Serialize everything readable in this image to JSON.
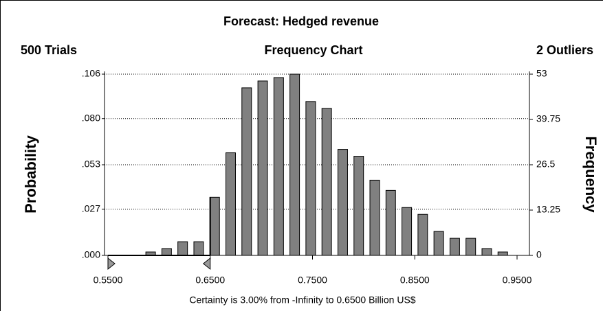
{
  "chart_data": {
    "type": "histogram",
    "title": "Forecast: Hedged revenue",
    "subtitle": "Frequency Chart",
    "trials": "500 Trials",
    "outliers": "2 Outliers",
    "y_label": "Probability",
    "y2_label": "Frequency",
    "footer": "Certainty is 3.00% from -Infinity to 0.6500 Billion US$",
    "bins": [
      0.5839,
      0.5996,
      0.6152,
      0.6309,
      0.6465,
      0.6622,
      0.6778,
      0.6935,
      0.7091,
      0.7248,
      0.7404,
      0.7561,
      0.7717,
      0.7874,
      0.803,
      0.8187,
      0.8343,
      0.85,
      0.8656,
      0.8813,
      0.8969,
      0.9126,
      0.9282,
      0.9439
    ],
    "series": [
      {
        "name": "Frequency",
        "color": "#808080",
        "axis": "y2",
        "values": [
          1,
          2,
          4,
          4,
          17,
          30,
          49,
          51,
          52,
          53,
          45,
          43,
          31,
          29,
          22,
          19,
          14,
          12,
          7,
          5,
          5,
          2,
          1
        ]
      }
    ],
    "certainty_range": [
      0.55,
      0.65
    ],
    "xlim": [
      0.55,
      0.95
    ],
    "xticks": [
      {
        "value": 0.55,
        "label": "0.5500"
      },
      {
        "value": 0.65,
        "label": "0.6500"
      },
      {
        "value": 0.75,
        "label": "0.7500"
      },
      {
        "value": 0.85,
        "label": "0.8500"
      },
      {
        "value": 0.95,
        "label": "0.9500"
      }
    ],
    "ylim": [
      0,
      0.106
    ],
    "yticks": [
      {
        "value": 0,
        "label": ".000"
      },
      {
        "value": 0.027,
        "label": ".027"
      },
      {
        "value": 0.053,
        "label": ".053"
      },
      {
        "value": 0.08,
        "label": ".080"
      },
      {
        "value": 0.106,
        "label": ".106"
      }
    ],
    "y2lim": [
      0,
      53
    ],
    "y2ticks": [
      0,
      13.25,
      26.5,
      39.75,
      53
    ],
    "grid": true
  }
}
